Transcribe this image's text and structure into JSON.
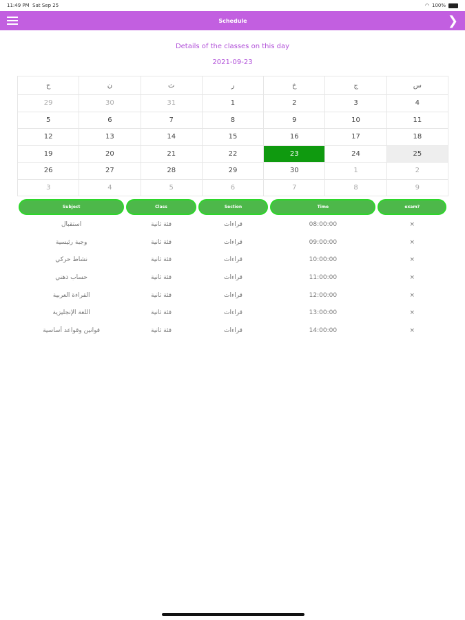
{
  "status": {
    "time": "11:49 PM",
    "date": "Sat Sep 25",
    "battery": "100%"
  },
  "nav": {
    "title": "Schedule",
    "menu_icon": "hamburger-icon",
    "forward_icon": "chevron-right-icon"
  },
  "heading": "Details of the classes on this day",
  "selected_date": "2021-09-23",
  "calendar": {
    "weekdays": [
      "ح",
      "ن",
      "ث",
      "ر",
      "خ",
      "ج",
      "س"
    ],
    "weeks": [
      [
        "29",
        "30",
        "31",
        "1",
        "2",
        "3",
        "4"
      ],
      [
        "5",
        "6",
        "7",
        "8",
        "9",
        "10",
        "11"
      ],
      [
        "12",
        "13",
        "14",
        "15",
        "16",
        "17",
        "18"
      ],
      [
        "19",
        "20",
        "21",
        "22",
        "23",
        "24",
        "25"
      ],
      [
        "26",
        "27",
        "28",
        "29",
        "30",
        "1",
        "2"
      ],
      [
        "3",
        "4",
        "5",
        "6",
        "7",
        "8",
        "9"
      ]
    ],
    "selected": "23",
    "today": "25",
    "selected_color": "#0f9a0f"
  },
  "table": {
    "headers": [
      "Subject",
      "Class",
      "Section",
      "Time",
      "exam?"
    ],
    "rows": [
      [
        "استقبال",
        "فئة ثانية",
        "قراءات",
        "08:00:00",
        "×"
      ],
      [
        "وجبة رئيسية",
        "فئة ثانية",
        "قراءات",
        "09:00:00",
        "×"
      ],
      [
        "نشاط حركي",
        "فئة ثانية",
        "قراءات",
        "10:00:00",
        "×"
      ],
      [
        "حساب ذهني",
        "فئة ثانية",
        "قراءات",
        "11:00:00",
        "×"
      ],
      [
        "القراءة العربية",
        "فئة ثانية",
        "قراءات",
        "12:00:00",
        "×"
      ],
      [
        "اللغة الإنجليزية",
        "فئة ثانية",
        "قراءات",
        "13:00:00",
        "×"
      ],
      [
        "قوانين وقواعد أساسية",
        "فئة ثانية",
        "قراءات",
        "14:00:00",
        "×"
      ]
    ]
  }
}
